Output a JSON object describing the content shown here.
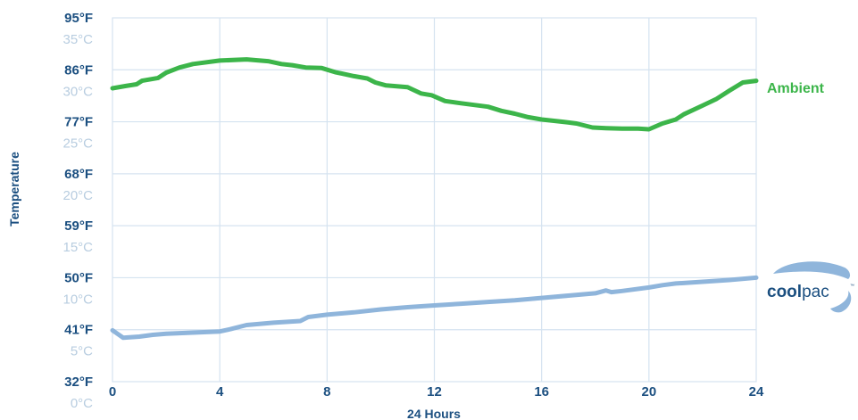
{
  "chart_data": {
    "type": "line",
    "xlabel": "24 Hours",
    "ylabel": "Temperature",
    "xlim": [
      0,
      24
    ],
    "ylim_fahrenheit": [
      32,
      95
    ],
    "x_ticks": [
      "0",
      "4",
      "8",
      "12",
      "16",
      "20",
      "24"
    ],
    "y_ticks_fahrenheit": [
      "95°F",
      "86°F",
      "77°F",
      "68°F",
      "59°F",
      "50°F",
      "41°F",
      "32°F"
    ],
    "y_ticks_celsius": [
      "35°C",
      "30°C",
      "25°C",
      "20°C",
      "15°C",
      "10°C",
      "5°C",
      "0°C"
    ],
    "grid": true,
    "series": [
      {
        "name": "Ambient",
        "color": "#3cb54a",
        "unit": "°F",
        "x": [
          0,
          0.5,
          0.9,
          1.1,
          1.7,
          2.0,
          2.5,
          3.0,
          4.0,
          5.0,
          5.8,
          6.3,
          6.7,
          7.2,
          7.8,
          8.3,
          9.0,
          9.5,
          9.8,
          10.2,
          11.0,
          11.5,
          11.9,
          12.4,
          13.0,
          14.0,
          14.5,
          15.0,
          15.5,
          16.0,
          16.8,
          17.3,
          17.9,
          18.4,
          19.0,
          19.6,
          20.0,
          20.5,
          21.0,
          21.3,
          22.0,
          22.5,
          23.0,
          23.5,
          24.0
        ],
        "y": [
          82.8,
          83.2,
          83.5,
          84.1,
          84.6,
          85.5,
          86.4,
          87.0,
          87.6,
          87.8,
          87.5,
          87.0,
          86.8,
          86.4,
          86.3,
          85.6,
          84.9,
          84.5,
          83.8,
          83.3,
          83.0,
          81.9,
          81.6,
          80.6,
          80.2,
          79.6,
          78.9,
          78.4,
          77.8,
          77.4,
          77.0,
          76.7,
          76.0,
          75.9,
          75.8,
          75.8,
          75.7,
          76.7,
          77.4,
          78.3,
          79.8,
          80.9,
          82.4,
          83.8,
          84.1
        ]
      },
      {
        "name": "coolpac",
        "color": "#8fb5db",
        "unit": "°F",
        "x": [
          0,
          0.4,
          1.0,
          1.5,
          2.0,
          3.0,
          4.0,
          4.4,
          5.0,
          6.0,
          7.0,
          7.3,
          8.0,
          9.0,
          10.0,
          11.0,
          12.0,
          13.0,
          14.0,
          15.0,
          16.0,
          17.0,
          18.0,
          18.4,
          18.6,
          19.0,
          20.0,
          20.5,
          21.0,
          22.0,
          23.0,
          24.0
        ],
        "y": [
          40.9,
          39.6,
          39.8,
          40.1,
          40.3,
          40.5,
          40.7,
          41.1,
          41.8,
          42.2,
          42.5,
          43.2,
          43.6,
          44.0,
          44.5,
          44.9,
          45.2,
          45.5,
          45.8,
          46.1,
          46.5,
          46.9,
          47.3,
          47.8,
          47.5,
          47.7,
          48.3,
          48.7,
          49.0,
          49.3,
          49.6,
          50.0
        ]
      }
    ]
  },
  "logo": {
    "bold": "cool",
    "light": "pac",
    "tm": "™"
  }
}
